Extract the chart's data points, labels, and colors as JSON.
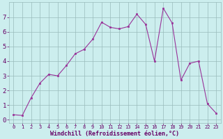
{
  "x": [
    0,
    1,
    2,
    3,
    4,
    5,
    6,
    7,
    8,
    9,
    10,
    11,
    12,
    13,
    14,
    15,
    16,
    17,
    18,
    19,
    20,
    21,
    22,
    23
  ],
  "y": [
    0.35,
    0.3,
    1.5,
    2.5,
    3.1,
    3.0,
    3.7,
    4.5,
    4.8,
    5.5,
    6.65,
    6.3,
    6.2,
    6.35,
    7.2,
    6.5,
    4.0,
    7.6,
    6.6,
    2.7,
    3.85,
    4.0,
    1.1,
    0.45
  ],
  "line_color": "#993399",
  "marker_color": "#993399",
  "bg_color": "#cceeee",
  "grid_color": "#99bbbb",
  "xlabel": "Windchill (Refroidissement éolien,°C)",
  "xlim": [
    -0.5,
    23.5
  ],
  "ylim": [
    -0.2,
    8.0
  ],
  "xticks": [
    0,
    1,
    2,
    3,
    4,
    5,
    6,
    7,
    8,
    9,
    10,
    11,
    12,
    13,
    14,
    15,
    16,
    17,
    18,
    19,
    20,
    21,
    22,
    23
  ],
  "yticks": [
    0,
    1,
    2,
    3,
    4,
    5,
    6,
    7
  ],
  "xlabel_color": "#660066",
  "tick_color": "#660066",
  "tick_fontsize": 5.0,
  "ylabel_fontsize": 6.5,
  "xlabel_fontsize": 6.0
}
